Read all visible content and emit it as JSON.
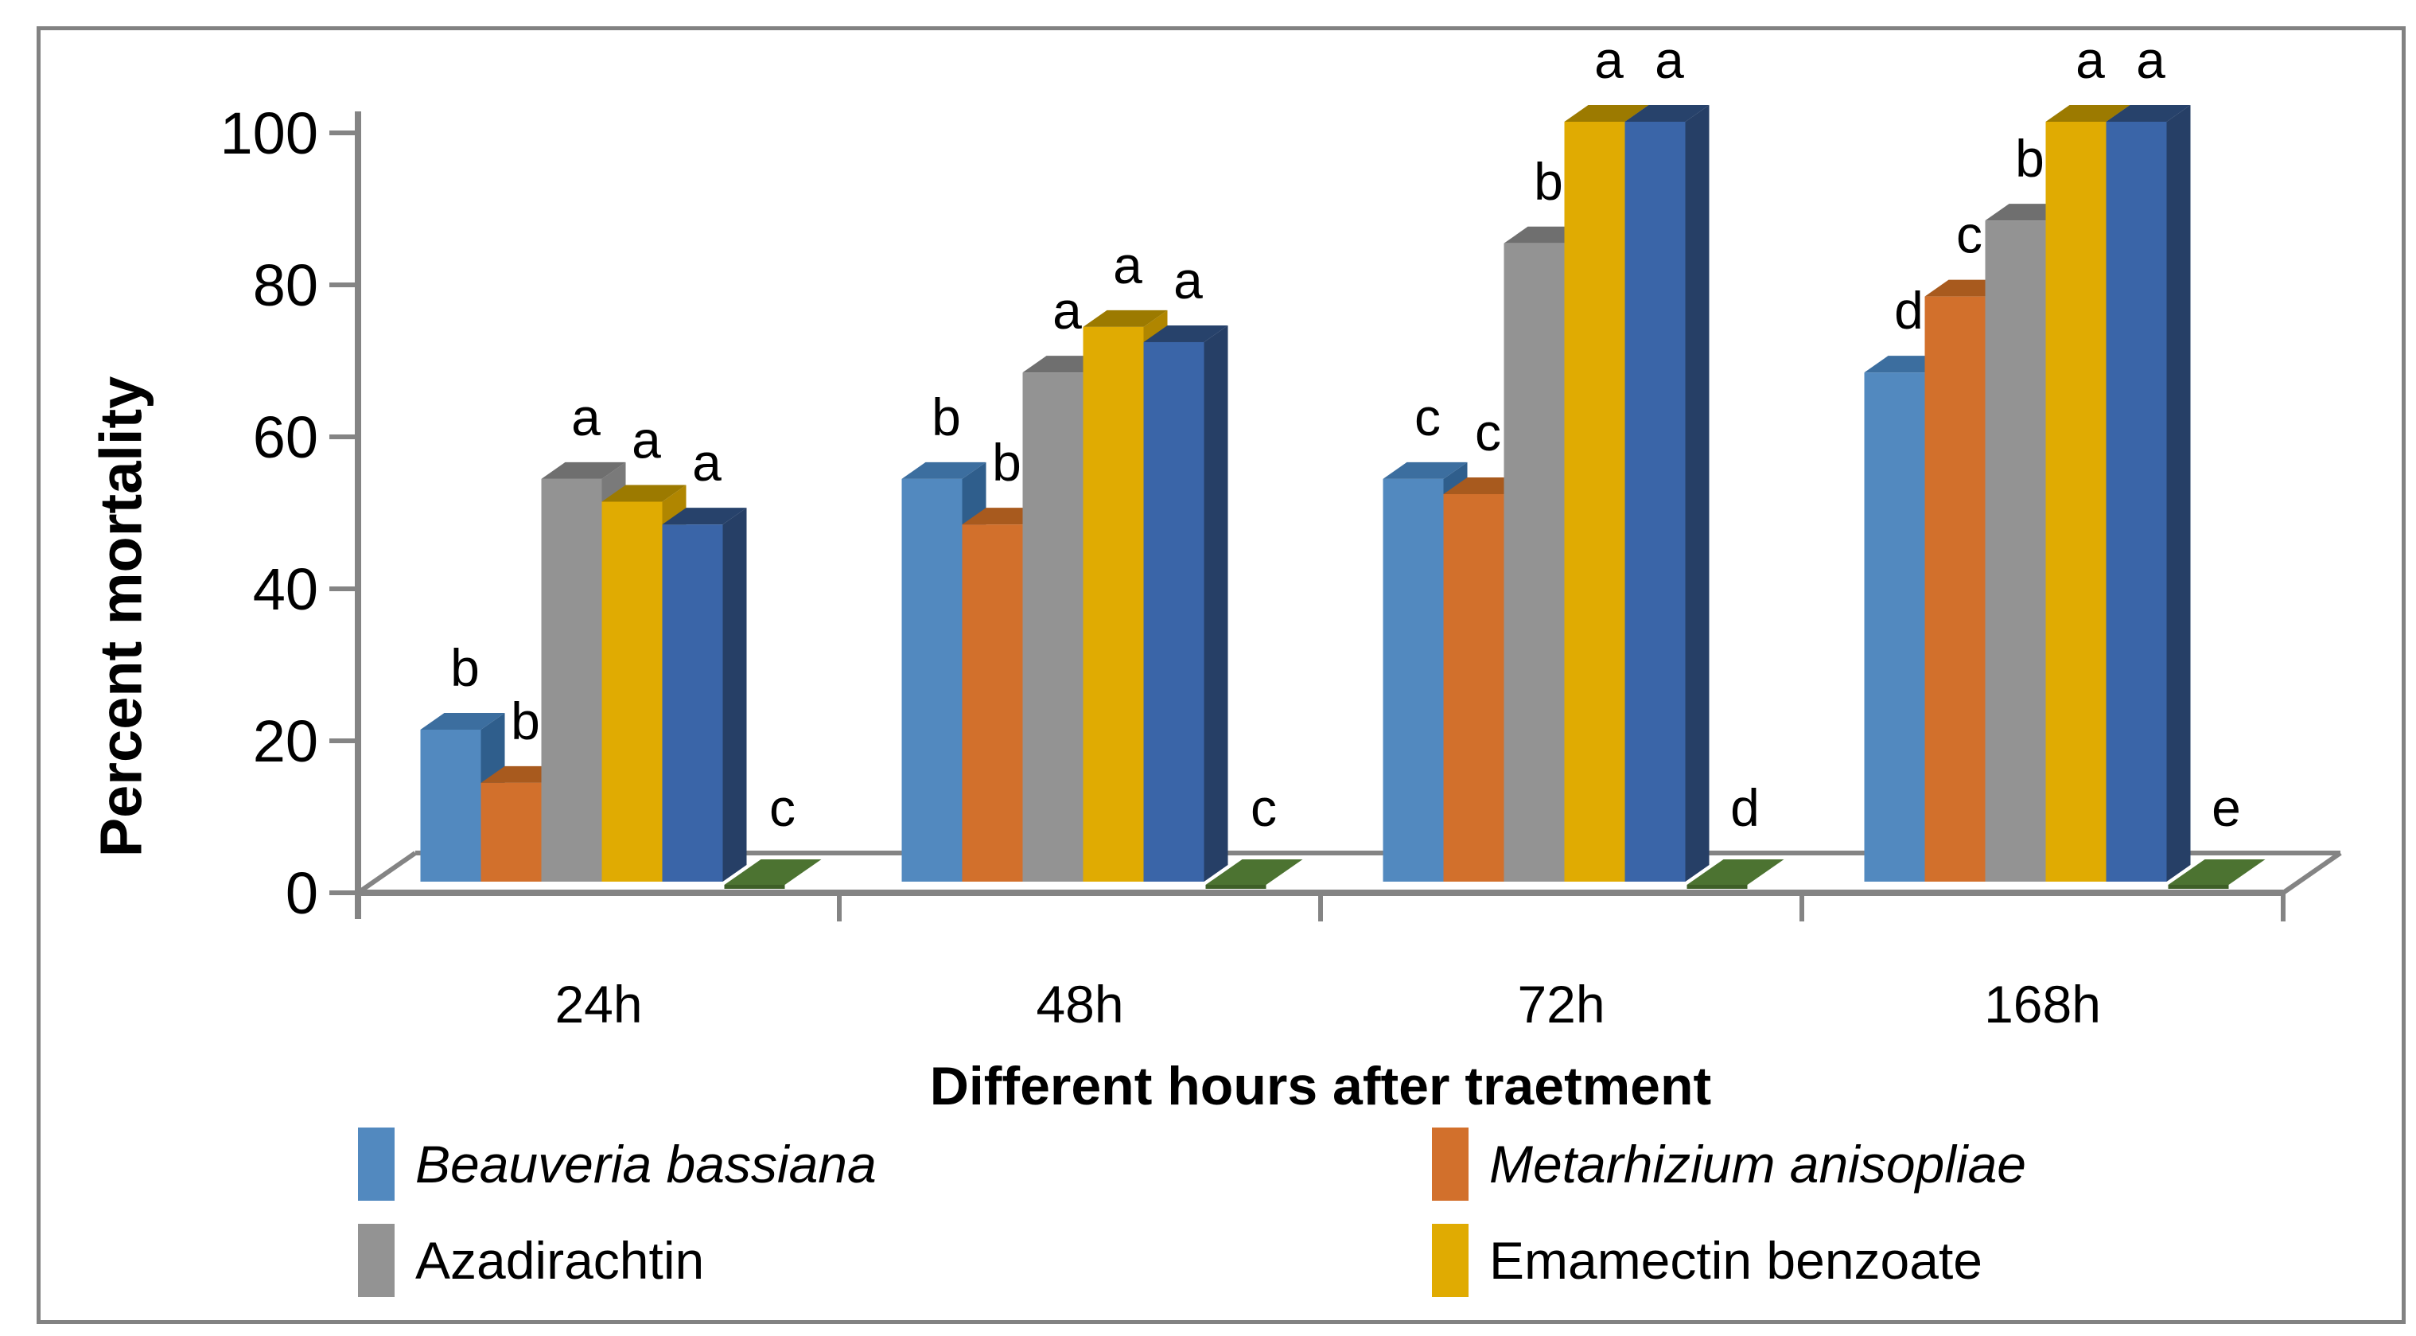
{
  "frame": {
    "border_color": "#828282",
    "background": "#ffffff"
  },
  "chart_data": {
    "type": "bar",
    "style": "3d-clustered-column",
    "title": "",
    "xlabel": "Different hours after traetment",
    "ylabel": "Percent mortality",
    "ylim": [
      0,
      100
    ],
    "yticks": [
      0,
      20,
      40,
      60,
      80,
      100
    ],
    "grid": false,
    "legend_position": "bottom-two-columns",
    "axis_color": "#848484",
    "categories": [
      "24h",
      "48h",
      "72h",
      "168h"
    ],
    "series": [
      {
        "name": "Beauveria bassiana",
        "legend_visible": true,
        "italic": true,
        "flat": false,
        "color": "#5289BF",
        "color_top": "#3C6E9F",
        "color_side": "#2F5E8C",
        "values": [
          20,
          53,
          53,
          67
        ],
        "letters": [
          "b",
          "b",
          "c",
          "d"
        ]
      },
      {
        "name": "Metarhizium anisopliae",
        "legend_visible": true,
        "italic": true,
        "flat": false,
        "color": "#D2702C",
        "color_top": "#A85A1E",
        "color_side": "#9C4F18",
        "values": [
          13,
          47,
          51,
          77
        ],
        "letters": [
          "b",
          "b",
          "c",
          "c"
        ]
      },
      {
        "name": "Azadirachtin",
        "legend_visible": true,
        "italic": false,
        "flat": false,
        "color": "#939393",
        "color_top": "#6F6F6F",
        "color_side": "#7A7A7A",
        "values": [
          53,
          67,
          84,
          87
        ],
        "letters": [
          "a",
          "a",
          "b",
          "b"
        ]
      },
      {
        "name": "Emamectin benzoate",
        "legend_visible": true,
        "italic": false,
        "flat": false,
        "color": "#E0AB02",
        "color_top": "#9C7A00",
        "color_side": "#B08600",
        "values": [
          50,
          73,
          100,
          100
        ],
        "letters": [
          "a",
          "a",
          "a",
          "a"
        ]
      },
      {
        "name": "",
        "legend_visible": false,
        "italic": false,
        "flat": false,
        "color": "#3A65A8",
        "color_top": "#27426B",
        "color_side": "#263F66",
        "values": [
          47,
          71,
          100,
          100
        ],
        "letters": [
          "a",
          "a",
          "a",
          "a"
        ]
      },
      {
        "name": "",
        "legend_visible": false,
        "italic": false,
        "flat": true,
        "color": "#4C7331",
        "color_top": "#4C7331",
        "color_side": "#3E5F27",
        "values": [
          0,
          0,
          0,
          0
        ],
        "letters": [
          "c",
          "c",
          "d",
          "e"
        ]
      }
    ]
  }
}
